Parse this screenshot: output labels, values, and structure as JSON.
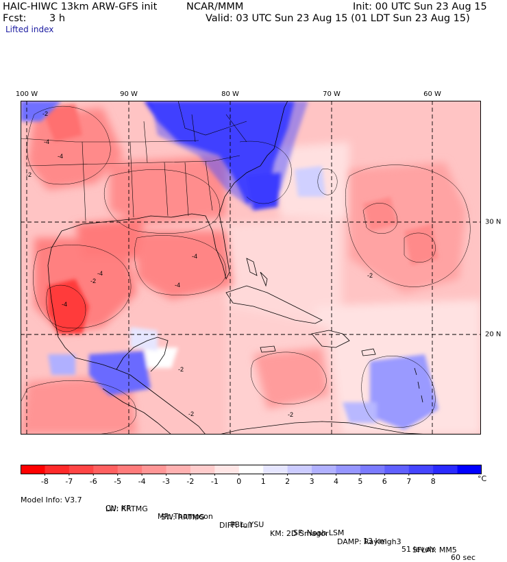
{
  "header": {
    "model": "HAIC-HIWC 13km ARW-GFS init",
    "org": "NCAR/MMM",
    "init": "Init: 00 UTC Sun 23 Aug 15",
    "fcst_label": "Fcst:",
    "fcst_value": "3 h",
    "valid": "Valid: 03 UTC Sun 23 Aug 15 (01 LDT Sun 23 Aug 15)",
    "field": "Lifted index"
  },
  "map": {
    "lon_labels": [
      "100 W",
      "90 W",
      "80 W",
      "70 W",
      "60 W"
    ],
    "lon_values": [
      -100,
      -90,
      -80,
      -70,
      -60
    ],
    "lat_labels": [
      "30 N",
      "20 N"
    ],
    "lat_values": [
      30,
      20
    ],
    "contour_labels": [
      "-2",
      "-4",
      "-4",
      "-2",
      "-4",
      "-4",
      "-4",
      "-4",
      "-2",
      "-2",
      "-2",
      "-2",
      "-2"
    ]
  },
  "colorbar": {
    "labels": [
      "-8",
      "-7",
      "-6",
      "-5",
      "-4",
      "-3",
      "-2",
      "-1",
      "0",
      "1",
      "2",
      "3",
      "4",
      "5",
      "6",
      "7",
      "8"
    ],
    "unit": "°C",
    "colors": [
      "#ff0000",
      "#ff2a2a",
      "#ff4545",
      "#ff6060",
      "#ff7b7b",
      "#ff9696",
      "#ffb1b1",
      "#ffcccc",
      "#ffe6e6",
      "#ffffff",
      "#e6e6ff",
      "#ccccff",
      "#b1b1ff",
      "#9696ff",
      "#7b7bff",
      "#6060ff",
      "#4545ff",
      "#2a2aff",
      "#0000ff"
    ]
  },
  "model_info": {
    "line1": [
      "Model Info: V3.7",
      "CU: KF",
      "MP: Thompson",
      "PBL: YSU",
      "SF: Noah LSM",
      "13 km",
      "51 levels",
      "60 sec"
    ],
    "line2": [
      "LW: RRTMG",
      "SW: RRTMG",
      "DIFF: full",
      "KM: 2D Smagor",
      "DAMP: Rayleigh3",
      "SFLAY: MM5"
    ]
  }
}
